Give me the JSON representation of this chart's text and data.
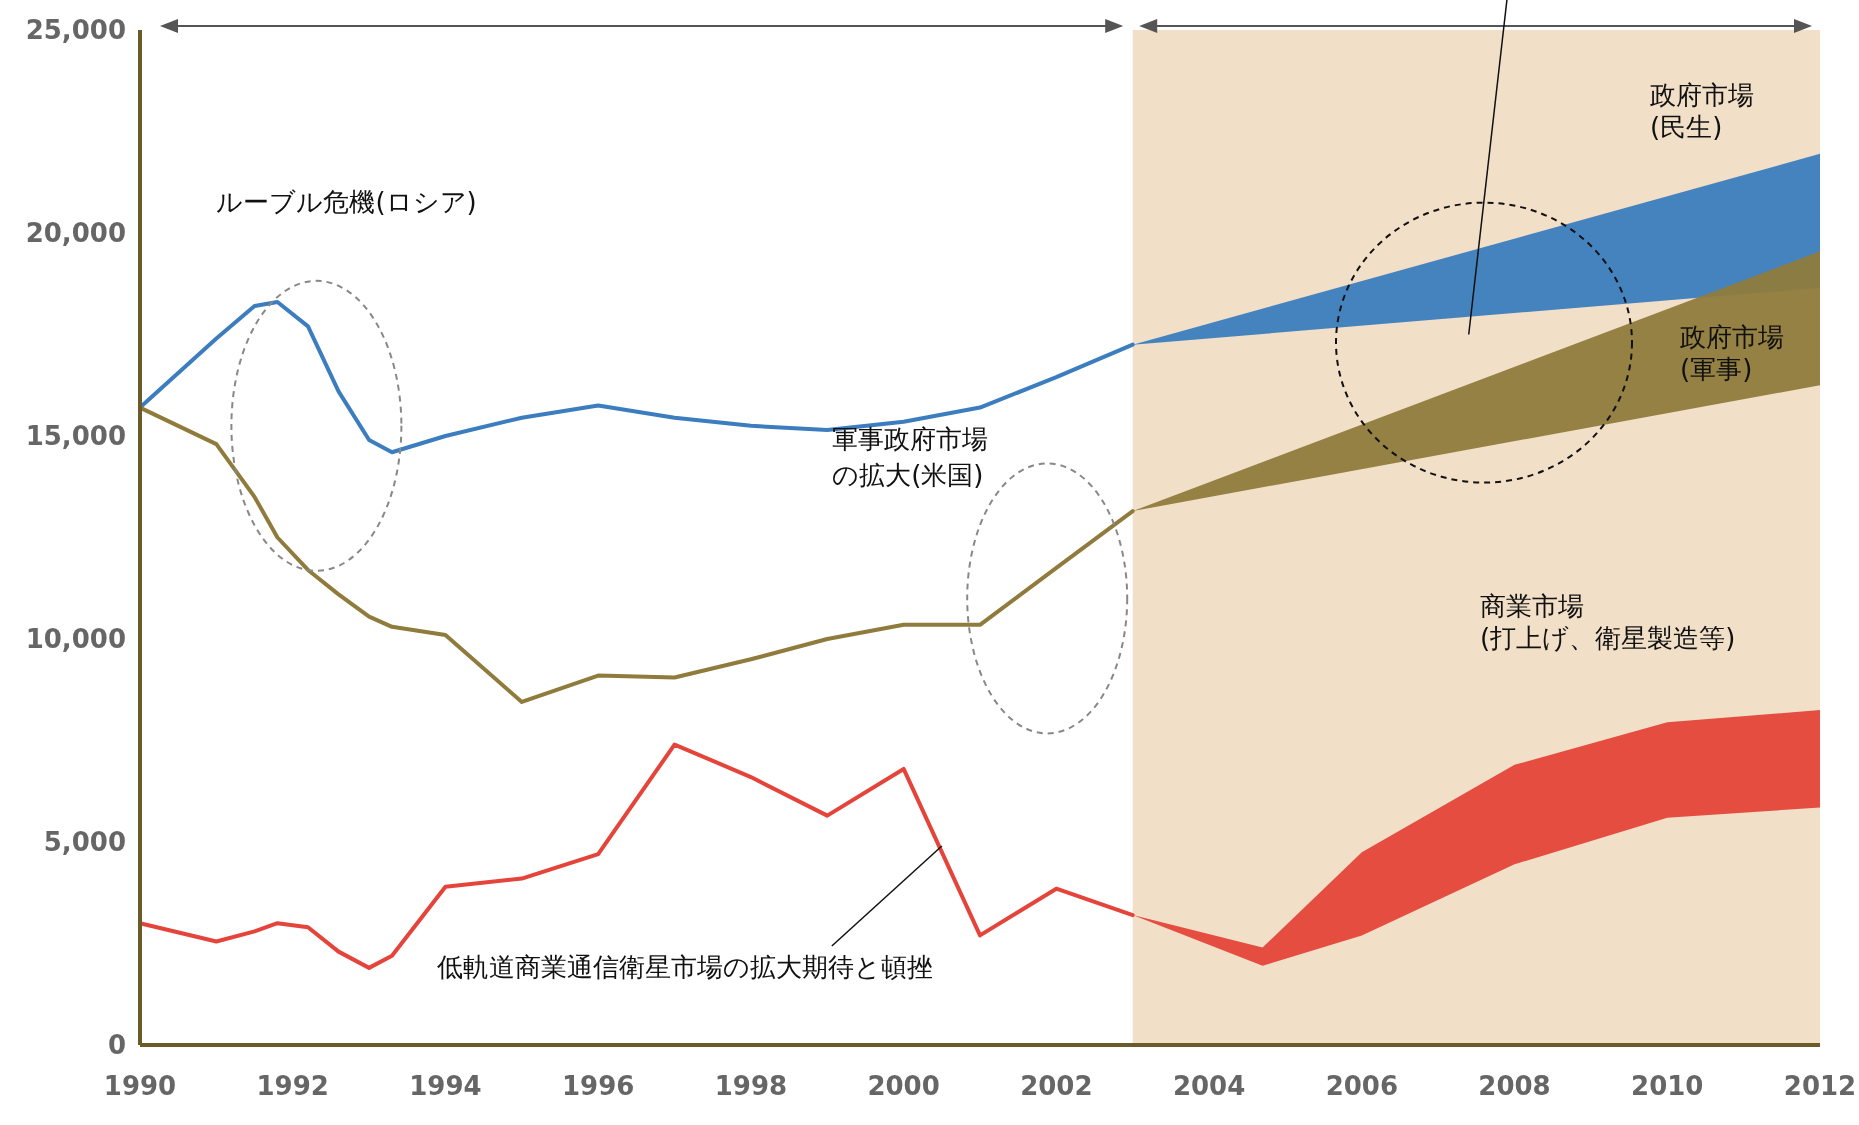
{
  "chart_data": {
    "type": "line",
    "x": [
      1990,
      1991,
      1991.5,
      1991.8,
      1992.2,
      1992.6,
      1993,
      1993.3,
      1994,
      1995,
      1996,
      1997,
      1998,
      1999,
      2000,
      2001,
      2002,
      2003,
      2004.7,
      2006,
      2008,
      2010,
      2012
    ],
    "xlim": [
      1990,
      2012
    ],
    "ylim": [
      0,
      25000
    ],
    "xticks": [
      1990,
      1992,
      1994,
      1996,
      1998,
      2000,
      2002,
      2004,
      2006,
      2008,
      2010,
      2012
    ],
    "yticks": [
      0,
      {
        "value": 5000,
        "label": "5,000"
      },
      {
        "value": 10000,
        "label": "10,000"
      },
      {
        "value": 15000,
        "label": "15,000"
      },
      {
        "value": 20000,
        "label": "20,000"
      },
      {
        "value": 25000,
        "label": "25,000"
      }
    ],
    "grid": false,
    "series": [
      {
        "name": "政府市場\n(民生)",
        "color": "#3b7dbf",
        "values": [
          15700,
          17400,
          18200,
          18300,
          17700,
          16100,
          14900,
          14600,
          15000,
          15450,
          15750,
          15450,
          15250,
          15150,
          15350,
          15700,
          16450,
          17250,
          null,
          null,
          null,
          null,
          null
        ],
        "lower": [
          null,
          null,
          null,
          null,
          null,
          null,
          null,
          null,
          null,
          null,
          null,
          null,
          null,
          null,
          null,
          null,
          null,
          17250,
          null,
          null,
          null,
          null,
          18650
        ],
        "upper": [
          null,
          null,
          null,
          null,
          null,
          null,
          null,
          null,
          null,
          null,
          null,
          null,
          null,
          null,
          null,
          null,
          null,
          17250,
          null,
          null,
          null,
          null,
          21950
        ]
      },
      {
        "name": "政府市場\n(軍事)",
        "color": "#8f7b3c",
        "values": [
          15700,
          14800,
          13500,
          12500,
          11700,
          11100,
          10550,
          10300,
          10100,
          8450,
          9100,
          9050,
          9500,
          10000,
          10350,
          10350,
          11750,
          13150,
          null,
          null,
          null,
          null,
          null
        ],
        "lower": [
          null,
          null,
          null,
          null,
          null,
          null,
          null,
          null,
          null,
          null,
          null,
          null,
          null,
          null,
          null,
          null,
          null,
          13150,
          null,
          null,
          null,
          null,
          16250
        ],
        "upper": [
          null,
          null,
          null,
          null,
          null,
          null,
          null,
          null,
          null,
          null,
          null,
          null,
          null,
          null,
          null,
          null,
          null,
          13150,
          null,
          null,
          null,
          null,
          19550
        ]
      },
      {
        "name": "商業市場\n(打上げ、衛星製造等)",
        "color": "#e5443a",
        "values": [
          3000,
          2550,
          2800,
          3000,
          2900,
          2300,
          1900,
          2200,
          3900,
          4100,
          4700,
          7400,
          6600,
          5650,
          6800,
          2700,
          3850,
          3200,
          null,
          null,
          null,
          null,
          null
        ],
        "lower": [
          null,
          null,
          null,
          null,
          null,
          null,
          null,
          null,
          null,
          null,
          null,
          null,
          null,
          null,
          null,
          null,
          null,
          3200,
          1950,
          2700,
          4450,
          5600,
          5850
        ],
        "upper": [
          null,
          null,
          null,
          null,
          null,
          null,
          null,
          null,
          null,
          null,
          null,
          null,
          null,
          null,
          null,
          null,
          null,
          3200,
          2400,
          4750,
          6900,
          7950,
          8250
        ]
      }
    ],
    "bands": [
      {
        "axis": "x",
        "from": 2003,
        "to": 2012,
        "color": "#f2dfc8"
      }
    ],
    "annotations": [
      "ルーブル危機(ロシア)",
      "軍事政府市場の拡大(米国)",
      {
        "text": "低軌道商業通信衛星市場の拡大期待と頓挫",
        "x": 2000.5,
        "y": 4900
      }
    ]
  }
}
